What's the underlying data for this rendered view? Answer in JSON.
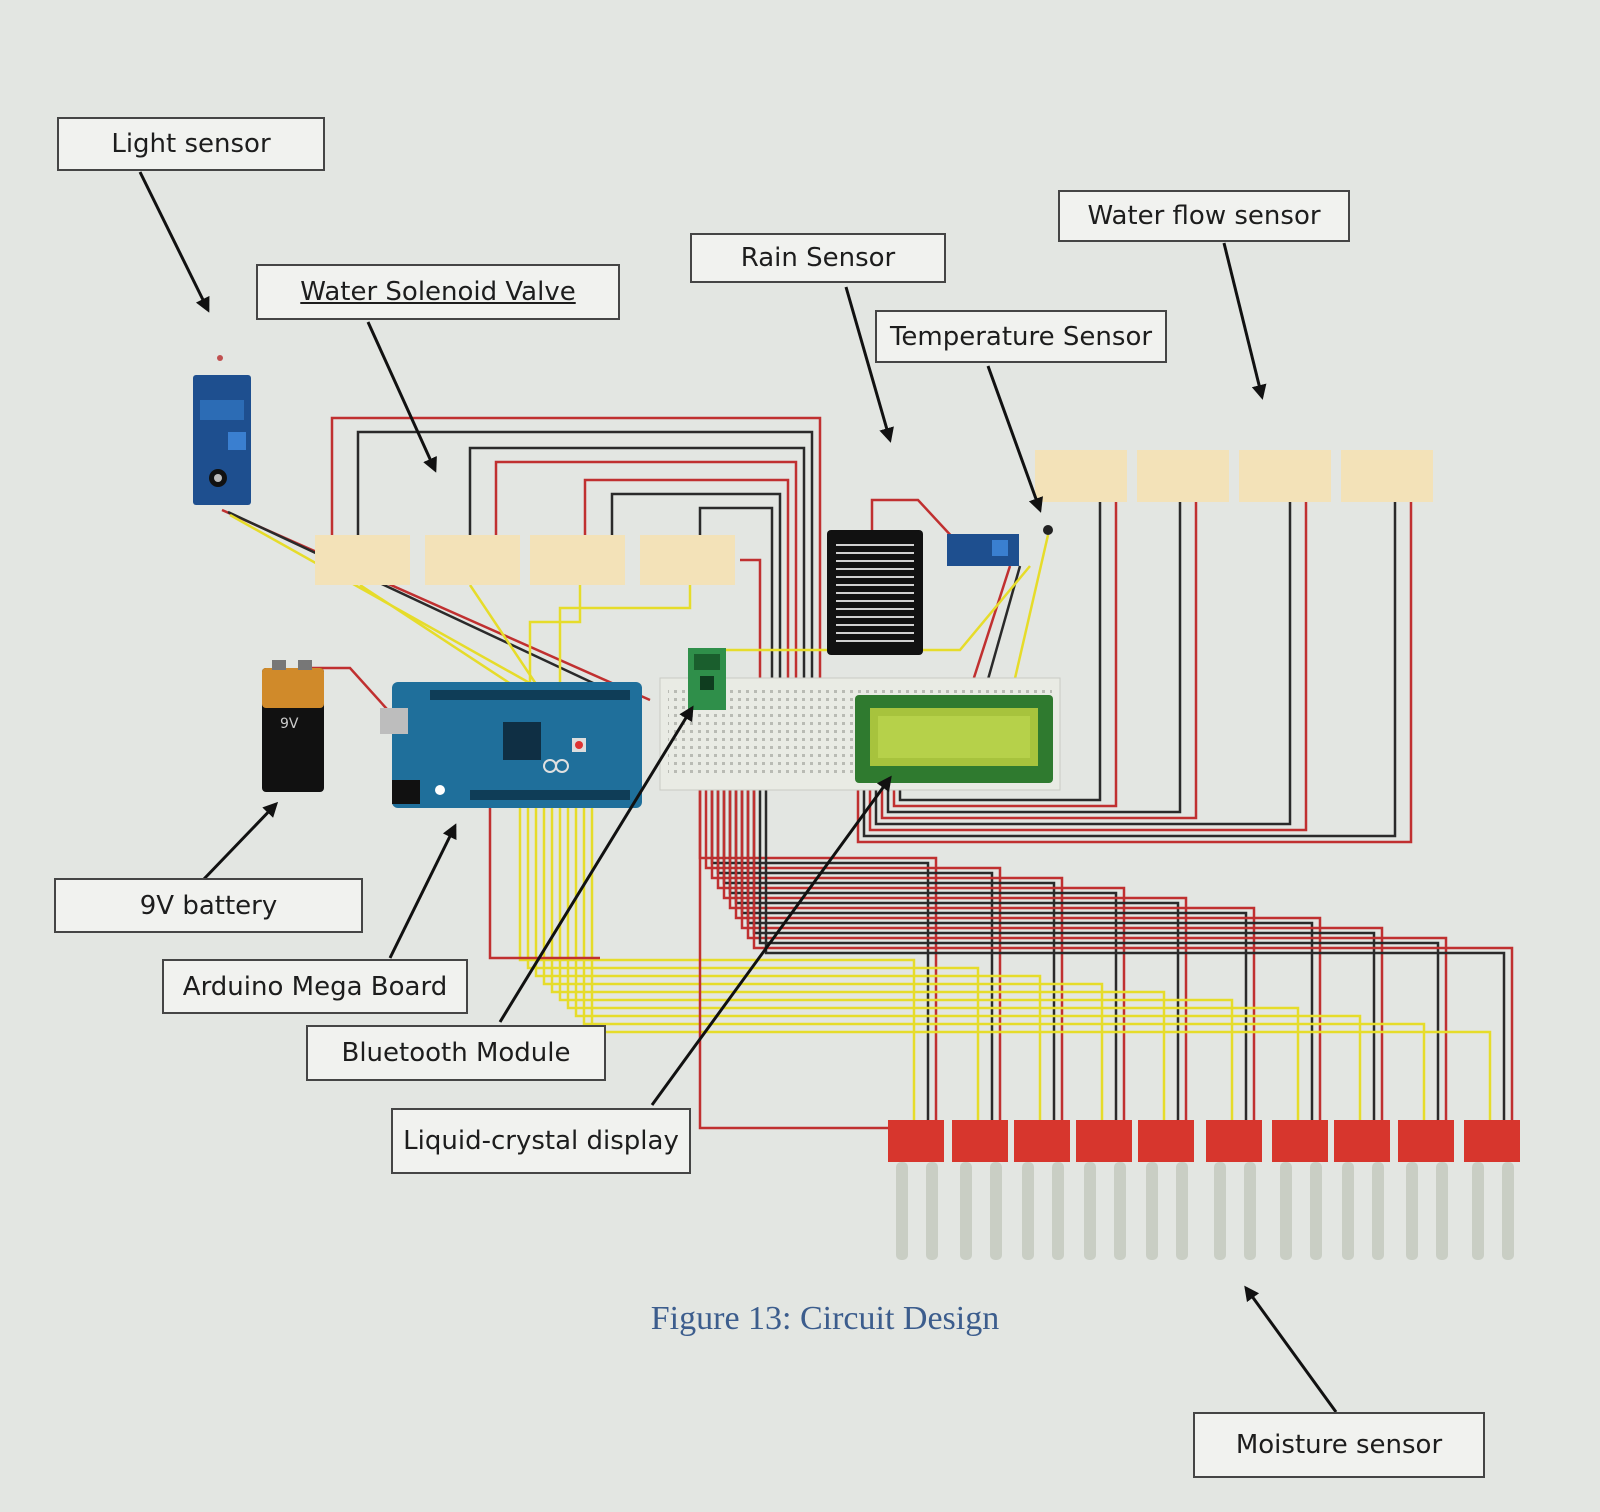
{
  "labels": {
    "light_sensor": "Light sensor",
    "water_solenoid_valve": "Water Solenoid Valve",
    "rain_sensor": "Rain Sensor",
    "water_flow_sensor": "Water flow sensor",
    "temperature_sensor": "Temperature Sensor",
    "battery_9v": "9V battery",
    "arduino_mega_board": "Arduino Mega Board",
    "bluetooth_module": "Bluetooth Module",
    "liquid_crystal_display": "Liquid-crystal display",
    "moisture_sensor": "Moisture sensor"
  },
  "battery_text": "9V",
  "caption": "Figure 13: Circuit Design",
  "colors": {
    "wire_red": "#c03030",
    "wire_black": "#2a2a2a",
    "wire_yellow": "#e6dc2a",
    "board_blue": "#1f6f9b",
    "lcd_green": "#a7c33d",
    "moisture_red": "#d7362d",
    "module_tan": "#f3e2b8",
    "caption_blue": "#3c5d8d"
  }
}
